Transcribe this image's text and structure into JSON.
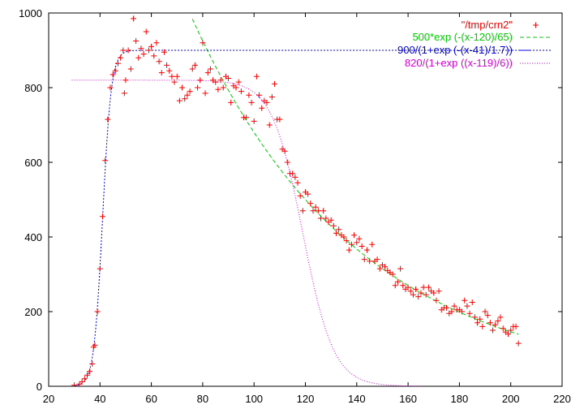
{
  "chart_data": {
    "type": "scatter",
    "title": "",
    "xlabel": "",
    "ylabel": "",
    "xlim": [
      20,
      220
    ],
    "ylim": [
      0,
      1000
    ],
    "xticks": [
      20,
      40,
      60,
      80,
      100,
      120,
      140,
      160,
      180,
      200,
      220
    ],
    "yticks": [
      0,
      200,
      400,
      600,
      800,
      1000
    ],
    "grid": false,
    "legend_position": "top-right",
    "series": [
      {
        "name": "\"/tmp/crn2\"",
        "kind": "points",
        "marker": "plus",
        "color": "#ff0000",
        "points": [
          [
            30,
            3
          ],
          [
            32,
            6
          ],
          [
            33,
            12
          ],
          [
            34,
            20
          ],
          [
            35,
            30
          ],
          [
            36,
            40
          ],
          [
            37,
            60
          ],
          [
            37.5,
            105
          ],
          [
            38,
            110
          ],
          [
            39,
            200
          ],
          [
            40,
            315
          ],
          [
            41,
            455
          ],
          [
            42,
            605
          ],
          [
            43,
            715
          ],
          [
            44,
            800
          ],
          [
            45,
            835
          ],
          [
            46,
            845
          ],
          [
            47,
            865
          ],
          [
            48,
            880
          ],
          [
            49,
            900
          ],
          [
            49.5,
            785
          ],
          [
            50,
            820
          ],
          [
            51,
            900
          ],
          [
            52,
            850
          ],
          [
            53,
            985
          ],
          [
            54,
            925
          ],
          [
            55,
            880
          ],
          [
            56,
            905
          ],
          [
            57,
            890
          ],
          [
            58,
            950
          ],
          [
            59,
            900
          ],
          [
            60,
            910
          ],
          [
            61,
            885
          ],
          [
            62,
            920
          ],
          [
            63,
            870
          ],
          [
            64,
            840
          ],
          [
            65,
            895
          ],
          [
            66,
            860
          ],
          [
            67,
            845
          ],
          [
            68,
            830
          ],
          [
            69,
            815
          ],
          [
            70,
            830
          ],
          [
            71,
            765
          ],
          [
            72,
            800
          ],
          [
            73,
            770
          ],
          [
            74,
            780
          ],
          [
            75,
            790
          ],
          [
            76,
            850
          ],
          [
            77,
            860
          ],
          [
            78,
            800
          ],
          [
            79,
            820
          ],
          [
            80,
            920
          ],
          [
            81,
            785
          ],
          [
            82,
            840
          ],
          [
            83,
            850
          ],
          [
            84,
            820
          ],
          [
            85,
            815
          ],
          [
            86,
            795
          ],
          [
            87,
            820
          ],
          [
            88,
            800
          ],
          [
            89,
            830
          ],
          [
            90,
            825
          ],
          [
            91,
            760
          ],
          [
            92,
            805
          ],
          [
            93,
            800
          ],
          [
            94,
            815
          ],
          [
            95,
            790
          ],
          [
            96,
            720
          ],
          [
            97,
            720
          ],
          [
            98,
            780
          ],
          [
            99,
            760
          ],
          [
            100,
            710
          ],
          [
            101,
            830
          ],
          [
            102,
            780
          ],
          [
            103,
            745
          ],
          [
            104,
            765
          ],
          [
            105,
            760
          ],
          [
            106,
            700
          ],
          [
            107,
            775
          ],
          [
            108,
            810
          ],
          [
            109,
            715
          ],
          [
            110,
            715
          ],
          [
            111,
            635
          ],
          [
            112,
            630
          ],
          [
            113,
            600
          ],
          [
            114,
            570
          ],
          [
            115,
            570
          ],
          [
            116,
            560
          ],
          [
            117,
            545
          ],
          [
            118,
            510
          ],
          [
            119,
            470
          ],
          [
            120,
            520
          ],
          [
            121,
            515
          ],
          [
            122,
            490
          ],
          [
            123,
            470
          ],
          [
            124,
            480
          ],
          [
            125,
            470
          ],
          [
            126,
            450
          ],
          [
            127,
            470
          ],
          [
            128,
            450
          ],
          [
            129,
            440
          ],
          [
            130,
            445
          ],
          [
            131,
            430
          ],
          [
            132,
            410
          ],
          [
            133,
            420
          ],
          [
            134,
            405
          ],
          [
            135,
            400
          ],
          [
            136,
            390
          ],
          [
            137,
            365
          ],
          [
            138,
            380
          ],
          [
            139,
            405
          ],
          [
            140,
            385
          ],
          [
            141,
            395
          ],
          [
            142,
            375
          ],
          [
            143,
            340
          ],
          [
            144,
            365
          ],
          [
            145,
            335
          ],
          [
            146,
            380
          ],
          [
            147,
            335
          ],
          [
            148,
            340
          ],
          [
            149,
            315
          ],
          [
            150,
            325
          ],
          [
            151,
            320
          ],
          [
            152,
            310
          ],
          [
            153,
            305
          ],
          [
            154,
            300
          ],
          [
            155,
            270
          ],
          [
            156,
            280
          ],
          [
            157,
            315
          ],
          [
            158,
            270
          ],
          [
            159,
            260
          ],
          [
            160,
            265
          ],
          [
            161,
            255
          ],
          [
            162,
            245
          ],
          [
            163,
            260
          ],
          [
            164,
            240
          ],
          [
            165,
            250
          ],
          [
            166,
            265
          ],
          [
            167,
            245
          ],
          [
            168,
            265
          ],
          [
            169,
            255
          ],
          [
            170,
            250
          ],
          [
            171,
            230
          ],
          [
            172,
            255
          ],
          [
            173,
            205
          ],
          [
            174,
            210
          ],
          [
            175,
            210
          ],
          [
            176,
            195
          ],
          [
            177,
            200
          ],
          [
            178,
            215
          ],
          [
            179,
            205
          ],
          [
            180,
            205
          ],
          [
            181,
            200
          ],
          [
            182,
            230
          ],
          [
            183,
            215
          ],
          [
            184,
            195
          ],
          [
            185,
            225
          ],
          [
            186,
            185
          ],
          [
            187,
            170
          ],
          [
            188,
            180
          ],
          [
            189,
            160
          ],
          [
            190,
            200
          ],
          [
            191,
            190
          ],
          [
            192,
            170
          ],
          [
            193,
            150
          ],
          [
            194,
            165
          ],
          [
            195,
            175
          ],
          [
            196,
            185
          ],
          [
            197,
            155
          ],
          [
            198,
            145
          ],
          [
            199,
            140
          ],
          [
            200,
            150
          ],
          [
            201,
            160
          ],
          [
            202,
            160
          ],
          [
            203,
            115
          ]
        ]
      },
      {
        "name": "500*exp (-(x-120)/65)",
        "kind": "curve",
        "function": "exp_decay",
        "params": {
          "a": 500,
          "x0": 120,
          "tau": 65
        },
        "domain": [
          76,
          203
        ],
        "color": "#00cc00",
        "dash": "5,3"
      },
      {
        "name": "900/(1+exp (-(x-41)/1.7))",
        "kind": "curve",
        "function": "logistic_rise",
        "params": {
          "a": 900,
          "x0": 41,
          "k": 1.7
        },
        "domain": [
          30,
          208
        ],
        "color": "#0000dd",
        "dash": "2,2"
      },
      {
        "name": "820/(1+exp ((x-119)/6))",
        "kind": "curve",
        "function": "logistic_fall",
        "params": {
          "a": 820,
          "x0": 119,
          "k": 6
        },
        "domain": [
          29,
          165
        ],
        "color": "#dd00dd",
        "dash": "1,2"
      }
    ]
  }
}
